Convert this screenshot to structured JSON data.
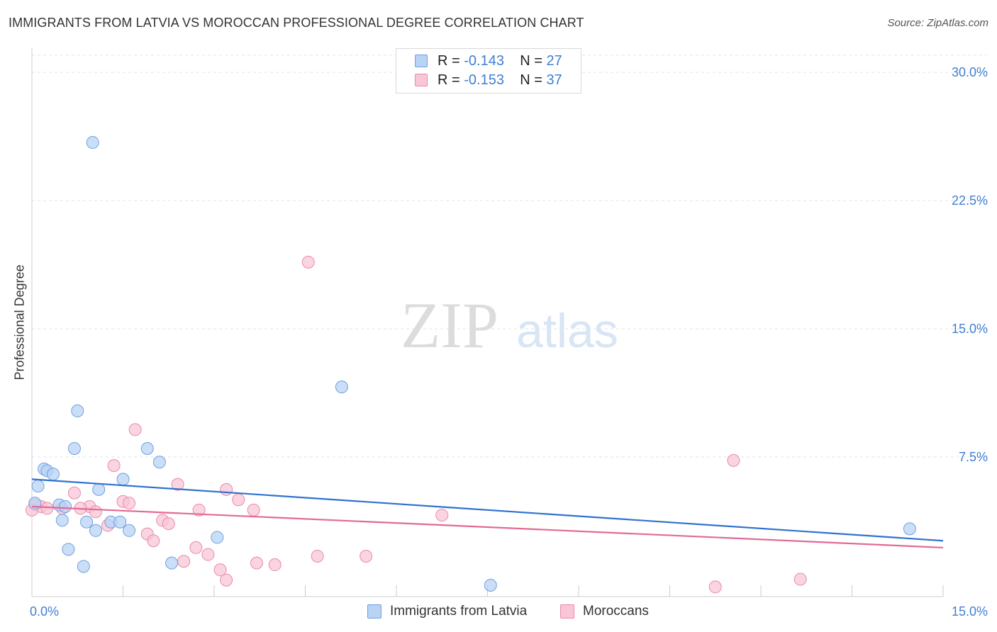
{
  "title": "IMMIGRANTS FROM LATVIA VS MOROCCAN PROFESSIONAL DEGREE CORRELATION CHART",
  "source": "Source: ZipAtlas.com",
  "watermark": {
    "zip": "ZIP",
    "atlas": "atlas"
  },
  "legend_top": [
    {
      "r_label": "R = ",
      "r_value": "-0.143",
      "n_label": "N = ",
      "n_value": "27"
    },
    {
      "r_label": "R = ",
      "r_value": "-0.153",
      "n_label": "N = ",
      "n_value": "37"
    }
  ],
  "legend_bottom": [
    "Immigrants from Latvia",
    "Moroccans"
  ],
  "colors": {
    "latvia_fill": "#b9d3f5",
    "latvia_stroke": "#6f9fe0",
    "latvia_line": "#2f72d0",
    "moroccan_fill": "#f8c6d5",
    "moroccan_stroke": "#e98aaa",
    "moroccan_line": "#e26a93",
    "axis_label": "#3f7fd4",
    "grid": "#e3e3e3"
  },
  "chart_data": {
    "type": "scatter",
    "title": "IMMIGRANTS FROM LATVIA VS MOROCCAN PROFESSIONAL DEGREE CORRELATION CHART",
    "xlabel": "",
    "ylabel": "Professional Degree",
    "xlim": [
      0,
      15
    ],
    "ylim": [
      0,
      31
    ],
    "x_tick_labels": [
      {
        "value": 0,
        "label": "0.0%"
      },
      {
        "value": 15,
        "label": "15.0%"
      }
    ],
    "y_tick_labels": [
      {
        "value": 7.5,
        "label": "7.5%"
      },
      {
        "value": 15,
        "label": "15.0%"
      },
      {
        "value": 22.5,
        "label": "22.5%"
      },
      {
        "value": 30,
        "label": "30.0%"
      }
    ],
    "grid": true,
    "legend_position": "top-center",
    "series": [
      {
        "name": "Immigrants from Latvia",
        "r": -0.143,
        "n": 27,
        "trend": {
          "x": [
            0,
            15
          ],
          "y": [
            6.2,
            2.6
          ]
        },
        "points": [
          {
            "x": 1.0,
            "y": 25.9
          },
          {
            "x": 5.1,
            "y": 11.6
          },
          {
            "x": 0.75,
            "y": 10.2
          },
          {
            "x": 0.7,
            "y": 8.0
          },
          {
            "x": 1.9,
            "y": 8.0
          },
          {
            "x": 2.1,
            "y": 7.2
          },
          {
            "x": 0.2,
            "y": 6.8
          },
          {
            "x": 0.25,
            "y": 6.7
          },
          {
            "x": 0.35,
            "y": 6.5
          },
          {
            "x": 1.5,
            "y": 6.2
          },
          {
            "x": 0.1,
            "y": 5.8
          },
          {
            "x": 1.1,
            "y": 5.6
          },
          {
            "x": 0.05,
            "y": 4.8
          },
          {
            "x": 0.45,
            "y": 4.7
          },
          {
            "x": 0.55,
            "y": 4.6
          },
          {
            "x": 0.5,
            "y": 3.8
          },
          {
            "x": 0.9,
            "y": 3.7
          },
          {
            "x": 1.3,
            "y": 3.7
          },
          {
            "x": 1.45,
            "y": 3.7
          },
          {
            "x": 1.05,
            "y": 3.2
          },
          {
            "x": 1.6,
            "y": 3.2
          },
          {
            "x": 3.05,
            "y": 2.8
          },
          {
            "x": 0.6,
            "y": 2.1
          },
          {
            "x": 2.3,
            "y": 1.3
          },
          {
            "x": 0.85,
            "y": 1.1
          },
          {
            "x": 7.55,
            "y": 0.0
          },
          {
            "x": 14.45,
            "y": 3.3
          }
        ]
      },
      {
        "name": "Moroccans",
        "r": -0.153,
        "n": 37,
        "trend": {
          "x": [
            0,
            15
          ],
          "y": [
            4.6,
            2.2
          ]
        },
        "points": [
          {
            "x": 4.55,
            "y": 18.9
          },
          {
            "x": 1.7,
            "y": 9.1
          },
          {
            "x": 11.55,
            "y": 7.3
          },
          {
            "x": 1.35,
            "y": 7.0
          },
          {
            "x": 2.4,
            "y": 5.9
          },
          {
            "x": 3.2,
            "y": 5.6
          },
          {
            "x": 0.7,
            "y": 5.4
          },
          {
            "x": 3.4,
            "y": 5.0
          },
          {
            "x": 1.5,
            "y": 4.9
          },
          {
            "x": 1.6,
            "y": 4.8
          },
          {
            "x": 0.05,
            "y": 4.7
          },
          {
            "x": 0.15,
            "y": 4.6
          },
          {
            "x": 0.25,
            "y": 4.5
          },
          {
            "x": 0.5,
            "y": 4.5
          },
          {
            "x": 0.95,
            "y": 4.6
          },
          {
            "x": 0.8,
            "y": 4.5
          },
          {
            "x": 2.75,
            "y": 4.4
          },
          {
            "x": 3.65,
            "y": 4.4
          },
          {
            "x": 1.05,
            "y": 4.3
          },
          {
            "x": 0.0,
            "y": 4.4
          },
          {
            "x": 6.75,
            "y": 4.1
          },
          {
            "x": 2.15,
            "y": 3.8
          },
          {
            "x": 2.25,
            "y": 3.6
          },
          {
            "x": 1.25,
            "y": 3.5
          },
          {
            "x": 1.9,
            "y": 3.0
          },
          {
            "x": 2.0,
            "y": 2.6
          },
          {
            "x": 2.7,
            "y": 2.2
          },
          {
            "x": 2.9,
            "y": 1.8
          },
          {
            "x": 4.7,
            "y": 1.7
          },
          {
            "x": 5.5,
            "y": 1.7
          },
          {
            "x": 2.5,
            "y": 1.4
          },
          {
            "x": 3.7,
            "y": 1.3
          },
          {
            "x": 4.0,
            "y": 1.2
          },
          {
            "x": 3.1,
            "y": 0.9
          },
          {
            "x": 3.2,
            "y": 0.3
          },
          {
            "x": 11.25,
            "y": -0.1
          },
          {
            "x": 12.65,
            "y": 0.35
          }
        ]
      }
    ]
  }
}
